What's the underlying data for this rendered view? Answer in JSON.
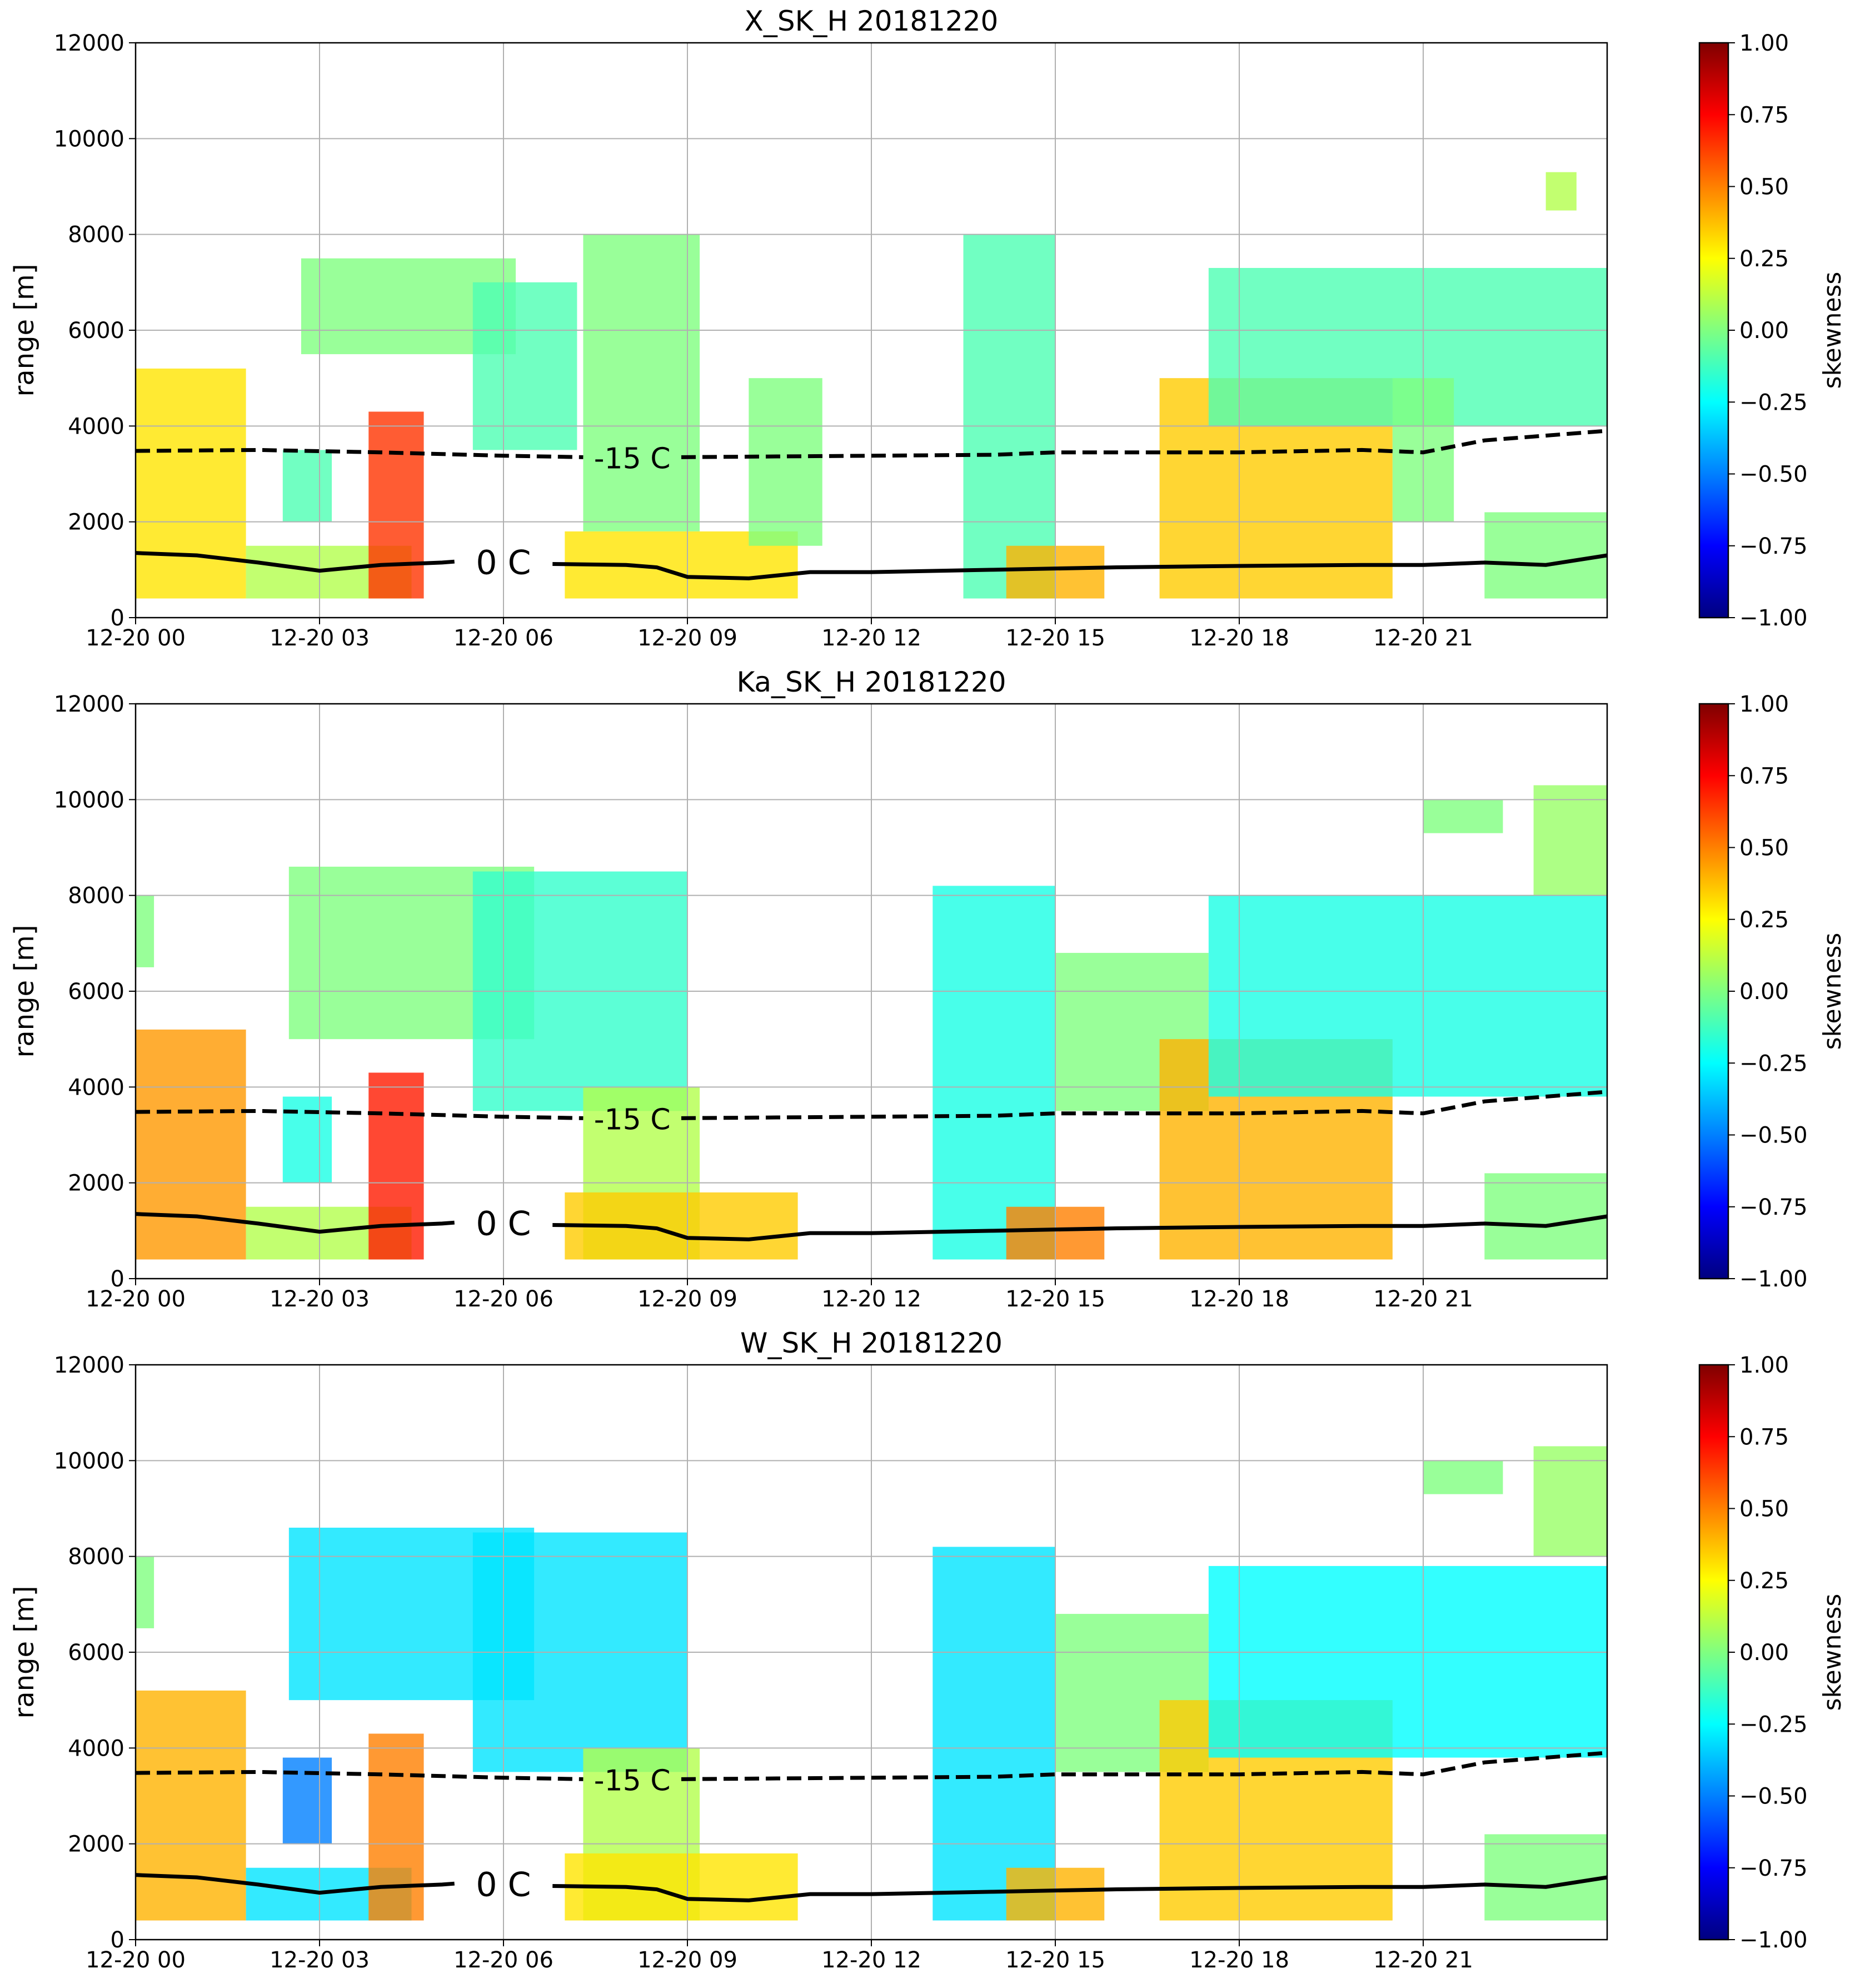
{
  "chart_data": [
    {
      "type": "heatmap",
      "title": "X_SK_H 20181220",
      "ylabel": "range [m]",
      "xlim": [
        0,
        24
      ],
      "xticks": [
        {
          "value": 0,
          "label": "12-20 00"
        },
        {
          "value": 3,
          "label": "12-20 03"
        },
        {
          "value": 6,
          "label": "12-20 06"
        },
        {
          "value": 9,
          "label": "12-20 09"
        },
        {
          "value": 12,
          "label": "12-20 12"
        },
        {
          "value": 15,
          "label": "12-20 15"
        },
        {
          "value": 18,
          "label": "12-20 18"
        },
        {
          "value": 21,
          "label": "12-20 21"
        }
      ],
      "ylim": [
        0,
        12000
      ],
      "yticks": [
        0,
        2000,
        4000,
        6000,
        8000,
        10000,
        12000
      ],
      "grid": true,
      "colorbar": {
        "label": "skewness",
        "colormap": "jet",
        "lim": [
          -1,
          1
        ],
        "ticks": [
          {
            "value": -1,
            "label": "−1.00"
          },
          {
            "value": -0.75,
            "label": "−0.75"
          },
          {
            "value": -0.5,
            "label": "−0.50"
          },
          {
            "value": -0.25,
            "label": "−0.25"
          },
          {
            "value": 0,
            "label": "0.00"
          },
          {
            "value": 0.25,
            "label": "0.25"
          },
          {
            "value": 0.5,
            "label": "0.50"
          },
          {
            "value": 0.75,
            "label": "0.75"
          },
          {
            "value": 1,
            "label": "1.00"
          }
        ]
      },
      "cells": [
        {
          "x": [
            0,
            1.8
          ],
          "y": [
            400,
            5200
          ],
          "value": 0.3
        },
        {
          "x": [
            1.8,
            4.5
          ],
          "y": [
            400,
            1500
          ],
          "value": 0.1
        },
        {
          "x": [
            2.4,
            3.2
          ],
          "y": [
            2000,
            3500
          ],
          "value": -0.1
        },
        {
          "x": [
            3.8,
            4.7
          ],
          "y": [
            400,
            4300
          ],
          "value": 0.65
        },
        {
          "x": [
            2.7,
            6.2
          ],
          "y": [
            5500,
            7500
          ],
          "value": 0
        },
        {
          "x": [
            5.5,
            7.2
          ],
          "y": [
            3500,
            7000
          ],
          "value": -0.1
        },
        {
          "x": [
            7.3,
            9.2
          ],
          "y": [
            1800,
            8000
          ],
          "value": 0
        },
        {
          "x": [
            7,
            10.8
          ],
          "y": [
            400,
            1800
          ],
          "value": 0.3
        },
        {
          "x": [
            10,
            11.2
          ],
          "y": [
            1500,
            5000
          ],
          "value": 0
        },
        {
          "x": [
            13.5,
            15
          ],
          "y": [
            400,
            8000
          ],
          "value": -0.1
        },
        {
          "x": [
            14.2,
            15.8
          ],
          "y": [
            400,
            1500
          ],
          "value": 0.4
        },
        {
          "x": [
            16.7,
            20.5
          ],
          "y": [
            400,
            5000
          ],
          "value": 0.35
        },
        {
          "x": [
            17.5,
            24
          ],
          "y": [
            4000,
            7300
          ],
          "value": -0.1
        },
        {
          "x": [
            20.5,
            21.5
          ],
          "y": [
            2000,
            5000
          ],
          "value": 0
        },
        {
          "x": [
            22,
            24
          ],
          "y": [
            400,
            2200
          ],
          "value": 0
        },
        {
          "x": [
            23,
            23.5
          ],
          "y": [
            8500,
            9300
          ],
          "value": 0.1
        }
      ],
      "series": [
        {
          "name": "0 C",
          "color": "#000000",
          "dash": false,
          "x": [
            0,
            1,
            2,
            3,
            4,
            5,
            5.2,
            5.5,
            6.8,
            8,
            8.5,
            9,
            10,
            11,
            12,
            14,
            16,
            18,
            20,
            21,
            22,
            23,
            24
          ],
          "values": [
            1350,
            1300,
            1150,
            980,
            1100,
            1150,
            1170,
            null,
            1120,
            1100,
            1050,
            850,
            820,
            950,
            950,
            1000,
            1050,
            1080,
            1100,
            1100,
            1150,
            1100,
            1300
          ]
        },
        {
          "name": "-15 C",
          "color": "#000000",
          "dash": true,
          "x": [
            0,
            2,
            4,
            6,
            7.3,
            8,
            8.9,
            12,
            14,
            15,
            18,
            20,
            21,
            22,
            24
          ],
          "values": [
            3480,
            3500,
            3450,
            3380,
            3350,
            null,
            3350,
            3380,
            3400,
            3450,
            3450,
            3500,
            3450,
            3700,
            3900
          ]
        }
      ]
    },
    {
      "type": "heatmap",
      "title": "Ka_SK_H 20181220",
      "ylabel": "range [m]",
      "xlim": [
        0,
        24
      ],
      "xticks": [
        {
          "value": 0,
          "label": "12-20 00"
        },
        {
          "value": 3,
          "label": "12-20 03"
        },
        {
          "value": 6,
          "label": "12-20 06"
        },
        {
          "value": 9,
          "label": "12-20 09"
        },
        {
          "value": 12,
          "label": "12-20 12"
        },
        {
          "value": 15,
          "label": "12-20 15"
        },
        {
          "value": 18,
          "label": "12-20 18"
        },
        {
          "value": 21,
          "label": "12-20 21"
        }
      ],
      "ylim": [
        0,
        12000
      ],
      "yticks": [
        0,
        2000,
        4000,
        6000,
        8000,
        10000,
        12000
      ],
      "grid": true,
      "colorbar": {
        "label": "skewness",
        "colormap": "jet",
        "lim": [
          -1,
          1
        ],
        "ticks": [
          {
            "value": -1,
            "label": "−1.00"
          },
          {
            "value": -0.75,
            "label": "−0.75"
          },
          {
            "value": -0.5,
            "label": "−0.50"
          },
          {
            "value": -0.25,
            "label": "−0.25"
          },
          {
            "value": 0,
            "label": "0.00"
          },
          {
            "value": 0.25,
            "label": "0.25"
          },
          {
            "value": 0.5,
            "label": "0.50"
          },
          {
            "value": 0.75,
            "label": "0.75"
          },
          {
            "value": 1,
            "label": "1.00"
          }
        ]
      },
      "cells": [
        {
          "x": [
            0,
            1.8
          ],
          "y": [
            400,
            5200
          ],
          "value": 0.45
        },
        {
          "x": [
            1.8,
            4.5
          ],
          "y": [
            400,
            1500
          ],
          "value": 0.1
        },
        {
          "x": [
            2.4,
            3.2
          ],
          "y": [
            2000,
            3800
          ],
          "value": -0.2
        },
        {
          "x": [
            3.8,
            4.7
          ],
          "y": [
            400,
            4300
          ],
          "value": 0.7
        },
        {
          "x": [
            2.5,
            6.5
          ],
          "y": [
            5000,
            8600
          ],
          "value": 0
        },
        {
          "x": [
            5.5,
            9
          ],
          "y": [
            3500,
            8500
          ],
          "value": -0.15
        },
        {
          "x": [
            7.3,
            9.2
          ],
          "y": [
            400,
            4000
          ],
          "value": 0.1
        },
        {
          "x": [
            7,
            10.8
          ],
          "y": [
            400,
            1800
          ],
          "value": 0.35
        },
        {
          "x": [
            0,
            0.3
          ],
          "y": [
            6500,
            8000
          ],
          "value": 0
        },
        {
          "x": [
            13,
            15
          ],
          "y": [
            400,
            8200
          ],
          "value": -0.2
        },
        {
          "x": [
            14.2,
            15.8
          ],
          "y": [
            400,
            1500
          ],
          "value": 0.5
        },
        {
          "x": [
            15,
            17.5
          ],
          "y": [
            3500,
            6800
          ],
          "value": 0
        },
        {
          "x": [
            16.7,
            20.5
          ],
          "y": [
            400,
            5000
          ],
          "value": 0.4
        },
        {
          "x": [
            17.5,
            24
          ],
          "y": [
            3800,
            8000
          ],
          "value": -0.2
        },
        {
          "x": [
            22,
            24
          ],
          "y": [
            400,
            2200
          ],
          "value": 0
        },
        {
          "x": [
            21,
            22.3
          ],
          "y": [
            9300,
            10000
          ],
          "value": 0
        },
        {
          "x": [
            22.8,
            24
          ],
          "y": [
            8000,
            10300
          ],
          "value": 0.05
        }
      ],
      "series": [
        {
          "name": "0 C",
          "color": "#000000",
          "dash": false,
          "x": [
            0,
            1,
            2,
            3,
            4,
            5,
            5.2,
            5.5,
            6.8,
            8,
            8.5,
            9,
            10,
            11,
            12,
            14,
            16,
            18,
            20,
            21,
            22,
            23,
            24
          ],
          "values": [
            1350,
            1300,
            1150,
            980,
            1100,
            1150,
            1170,
            null,
            1120,
            1100,
            1050,
            850,
            820,
            950,
            950,
            1000,
            1050,
            1080,
            1100,
            1100,
            1150,
            1100,
            1300
          ]
        },
        {
          "name": "-15 C",
          "color": "#000000",
          "dash": true,
          "x": [
            0,
            2,
            4,
            6,
            7.3,
            8,
            8.9,
            12,
            14,
            15,
            18,
            20,
            21,
            22,
            24
          ],
          "values": [
            3480,
            3500,
            3450,
            3380,
            3350,
            null,
            3350,
            3380,
            3400,
            3450,
            3450,
            3500,
            3450,
            3700,
            3900
          ]
        }
      ]
    },
    {
      "type": "heatmap",
      "title": "W_SK_H 20181220",
      "ylabel": "range [m]",
      "xlim": [
        0,
        24
      ],
      "xticks": [
        {
          "value": 0,
          "label": "12-20 00"
        },
        {
          "value": 3,
          "label": "12-20 03"
        },
        {
          "value": 6,
          "label": "12-20 06"
        },
        {
          "value": 9,
          "label": "12-20 09"
        },
        {
          "value": 12,
          "label": "12-20 12"
        },
        {
          "value": 15,
          "label": "12-20 15"
        },
        {
          "value": 18,
          "label": "12-20 18"
        },
        {
          "value": 21,
          "label": "12-20 21"
        }
      ],
      "ylim": [
        0,
        12000
      ],
      "yticks": [
        0,
        2000,
        4000,
        6000,
        8000,
        10000,
        12000
      ],
      "grid": true,
      "colorbar": {
        "label": "skewness",
        "colormap": "jet",
        "lim": [
          -1,
          1
        ],
        "ticks": [
          {
            "value": -1,
            "label": "−1.00"
          },
          {
            "value": -0.75,
            "label": "−0.75"
          },
          {
            "value": -0.5,
            "label": "−0.50"
          },
          {
            "value": -0.25,
            "label": "−0.25"
          },
          {
            "value": 0,
            "label": "0.00"
          },
          {
            "value": 0.25,
            "label": "0.25"
          },
          {
            "value": 0.5,
            "label": "0.50"
          },
          {
            "value": 0.75,
            "label": "0.75"
          },
          {
            "value": 1,
            "label": "1.00"
          }
        ]
      },
      "cells": [
        {
          "x": [
            0,
            1.8
          ],
          "y": [
            400,
            5200
          ],
          "value": 0.4
        },
        {
          "x": [
            1.8,
            4.5
          ],
          "y": [
            400,
            1500
          ],
          "value": -0.3
        },
        {
          "x": [
            2.4,
            3.2
          ],
          "y": [
            2000,
            3800
          ],
          "value": -0.5
        },
        {
          "x": [
            3.8,
            4.7
          ],
          "y": [
            400,
            4300
          ],
          "value": 0.5
        },
        {
          "x": [
            2.5,
            6.5
          ],
          "y": [
            5000,
            8600
          ],
          "value": -0.3
        },
        {
          "x": [
            5.5,
            9
          ],
          "y": [
            3500,
            8500
          ],
          "value": -0.3
        },
        {
          "x": [
            7.3,
            9.2
          ],
          "y": [
            400,
            4000
          ],
          "value": 0.1
        },
        {
          "x": [
            7,
            10.8
          ],
          "y": [
            400,
            1800
          ],
          "value": 0.3
        },
        {
          "x": [
            0,
            0.3
          ],
          "y": [
            6500,
            8000
          ],
          "value": 0
        },
        {
          "x": [
            13,
            15
          ],
          "y": [
            400,
            8200
          ],
          "value": -0.3
        },
        {
          "x": [
            14.2,
            15.8
          ],
          "y": [
            400,
            1500
          ],
          "value": 0.4
        },
        {
          "x": [
            15,
            17.5
          ],
          "y": [
            3500,
            6800
          ],
          "value": 0
        },
        {
          "x": [
            16.7,
            20.5
          ],
          "y": [
            400,
            5000
          ],
          "value": 0.35
        },
        {
          "x": [
            17.5,
            24
          ],
          "y": [
            3800,
            7800
          ],
          "value": -0.25
        },
        {
          "x": [
            22,
            24
          ],
          "y": [
            400,
            2200
          ],
          "value": 0
        },
        {
          "x": [
            21,
            22.3
          ],
          "y": [
            9300,
            10000
          ],
          "value": 0
        },
        {
          "x": [
            22.8,
            24
          ],
          "y": [
            8000,
            10300
          ],
          "value": 0.05
        }
      ],
      "series": [
        {
          "name": "0 C",
          "color": "#000000",
          "dash": false,
          "x": [
            0,
            1,
            2,
            3,
            4,
            5,
            5.2,
            5.5,
            6.8,
            8,
            8.5,
            9,
            10,
            11,
            12,
            14,
            16,
            18,
            20,
            21,
            22,
            23,
            24
          ],
          "values": [
            1350,
            1300,
            1150,
            980,
            1100,
            1150,
            1170,
            null,
            1120,
            1100,
            1050,
            850,
            820,
            950,
            950,
            1000,
            1050,
            1080,
            1100,
            1100,
            1150,
            1100,
            1300
          ]
        },
        {
          "name": "-15 C",
          "color": "#000000",
          "dash": true,
          "x": [
            0,
            2,
            4,
            6,
            7.3,
            8,
            8.9,
            12,
            14,
            15,
            18,
            20,
            21,
            22,
            24
          ],
          "values": [
            3480,
            3500,
            3450,
            3380,
            3350,
            null,
            3350,
            3380,
            3400,
            3450,
            3450,
            3500,
            3450,
            3700,
            3900
          ]
        }
      ]
    }
  ]
}
